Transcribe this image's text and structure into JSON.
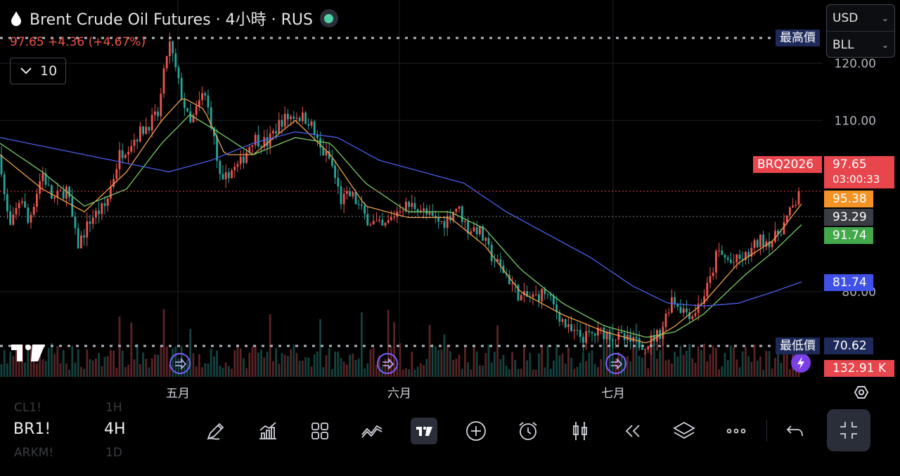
{
  "header": {
    "title": "Brent Crude Oil Futures · 4小時 · RUS",
    "quote": "97.65 +4.36 (+4.67%)",
    "indicator_count": "10"
  },
  "currency_select": {
    "currency": "USD",
    "unit": "BLL"
  },
  "tags": {
    "high_label": "最高價",
    "low_label": "最低價",
    "low_value": "70.62",
    "symbol_tag": "BRQ2026",
    "last_price": "97.65",
    "countdown": "03:00:33",
    "ma_fast": "95.38",
    "prev_close": "93.29",
    "ma_mid": "91.74",
    "ma_slow": "81.74",
    "volume": "132.91 K"
  },
  "colors": {
    "up": "#ef5350",
    "down": "#26a69a",
    "ma_fast": "#f0a04b",
    "ma_mid": "#7dcc68",
    "ma_slow": "#4a5fe8",
    "tag_red": "#e8464d",
    "tag_orange": "#f39325",
    "tag_gray": "#3b3d44",
    "tag_green": "#42a84a",
    "tag_blue": "#3f51e6",
    "tag_navy": "#1e2a5a"
  },
  "bottom_bar": {
    "symbol": "BR1!",
    "interval": "4H",
    "ghost_1": "CL1!",
    "ghost_2": "1H",
    "ghost_3": "ARKM!",
    "ghost_4": "1D"
  },
  "chart_data": {
    "type": "candlestick",
    "y_ticks": [
      "120.00",
      "110.00",
      "80.00"
    ],
    "x_ticks": [
      "五月",
      "六月",
      "七月"
    ],
    "ylim": [
      66,
      128
    ],
    "grid": true,
    "price_path": [
      [
        0,
        104
      ],
      [
        8,
        95
      ],
      [
        15,
        91
      ],
      [
        30,
        97
      ],
      [
        40,
        92
      ],
      [
        60,
        101
      ],
      [
        75,
        96
      ],
      [
        95,
        98
      ],
      [
        110,
        88
      ],
      [
        130,
        93
      ],
      [
        150,
        95
      ],
      [
        170,
        104
      ],
      [
        200,
        108
      ],
      [
        225,
        111
      ],
      [
        240,
        124
      ],
      [
        255,
        116
      ],
      [
        270,
        109
      ],
      [
        290,
        115
      ],
      [
        300,
        110
      ],
      [
        315,
        98
      ],
      [
        325,
        101
      ],
      [
        340,
        102
      ],
      [
        360,
        107
      ],
      [
        380,
        106
      ],
      [
        400,
        110
      ],
      [
        420,
        111
      ],
      [
        440,
        110
      ],
      [
        455,
        105
      ],
      [
        470,
        103
      ],
      [
        485,
        96
      ],
      [
        500,
        97
      ],
      [
        520,
        93
      ],
      [
        545,
        91
      ],
      [
        570,
        95
      ],
      [
        595,
        95
      ],
      [
        610,
        93
      ],
      [
        630,
        92
      ],
      [
        650,
        95
      ],
      [
        665,
        91
      ],
      [
        680,
        91
      ],
      [
        700,
        86
      ],
      [
        720,
        83
      ],
      [
        740,
        79
      ],
      [
        760,
        79
      ],
      [
        775,
        80
      ],
      [
        790,
        77
      ],
      [
        810,
        73
      ],
      [
        830,
        72
      ],
      [
        855,
        73
      ],
      [
        880,
        72
      ],
      [
        900,
        71
      ],
      [
        920,
        71
      ],
      [
        940,
        73
      ],
      [
        955,
        79
      ],
      [
        970,
        77
      ],
      [
        985,
        76
      ],
      [
        1000,
        79
      ],
      [
        1010,
        82
      ],
      [
        1020,
        87
      ],
      [
        1040,
        85
      ],
      [
        1060,
        86
      ],
      [
        1080,
        89
      ],
      [
        1100,
        89
      ],
      [
        1120,
        93
      ],
      [
        1140,
        97.65
      ]
    ],
    "series": [
      {
        "values": [
          [
            0,
            104
          ],
          [
            60,
            98
          ],
          [
            120,
            94
          ],
          [
            180,
            101
          ],
          [
            230,
            110
          ],
          [
            260,
            114
          ],
          [
            290,
            112
          ],
          [
            320,
            104
          ],
          [
            360,
            104
          ],
          [
            420,
            110
          ],
          [
            470,
            104
          ],
          [
            520,
            95
          ],
          [
            580,
            93
          ],
          [
            640,
            93
          ],
          [
            690,
            88
          ],
          [
            740,
            80
          ],
          [
            800,
            76
          ],
          [
            860,
            73
          ],
          [
            920,
            71
          ],
          [
            960,
            74
          ],
          [
            1000,
            78
          ],
          [
            1050,
            85
          ],
          [
            1100,
            89
          ],
          [
            1140,
            95.38
          ]
        ]
      },
      {
        "values": [
          [
            0,
            106
          ],
          [
            60,
            101
          ],
          [
            120,
            95
          ],
          [
            180,
            98
          ],
          [
            230,
            106
          ],
          [
            270,
            111
          ],
          [
            310,
            108
          ],
          [
            360,
            104
          ],
          [
            420,
            107
          ],
          [
            470,
            106
          ],
          [
            520,
            99
          ],
          [
            580,
            94
          ],
          [
            640,
            94
          ],
          [
            690,
            91
          ],
          [
            740,
            84
          ],
          [
            800,
            78
          ],
          [
            860,
            74
          ],
          [
            920,
            72
          ],
          [
            960,
            73
          ],
          [
            1000,
            76
          ],
          [
            1060,
            83
          ],
          [
            1100,
            87
          ],
          [
            1140,
            91.74
          ]
        ]
      },
      {
        "values": [
          [
            0,
            107
          ],
          [
            80,
            105
          ],
          [
            160,
            103
          ],
          [
            240,
            101
          ],
          [
            300,
            103
          ],
          [
            360,
            106
          ],
          [
            420,
            108
          ],
          [
            480,
            107
          ],
          [
            540,
            103
          ],
          [
            600,
            101
          ],
          [
            660,
            99
          ],
          [
            720,
            94
          ],
          [
            780,
            90
          ],
          [
            840,
            86
          ],
          [
            900,
            81
          ],
          [
            950,
            78
          ],
          [
            1000,
            77.5
          ],
          [
            1050,
            78
          ],
          [
            1100,
            80
          ],
          [
            1140,
            81.74
          ]
        ]
      }
    ]
  }
}
